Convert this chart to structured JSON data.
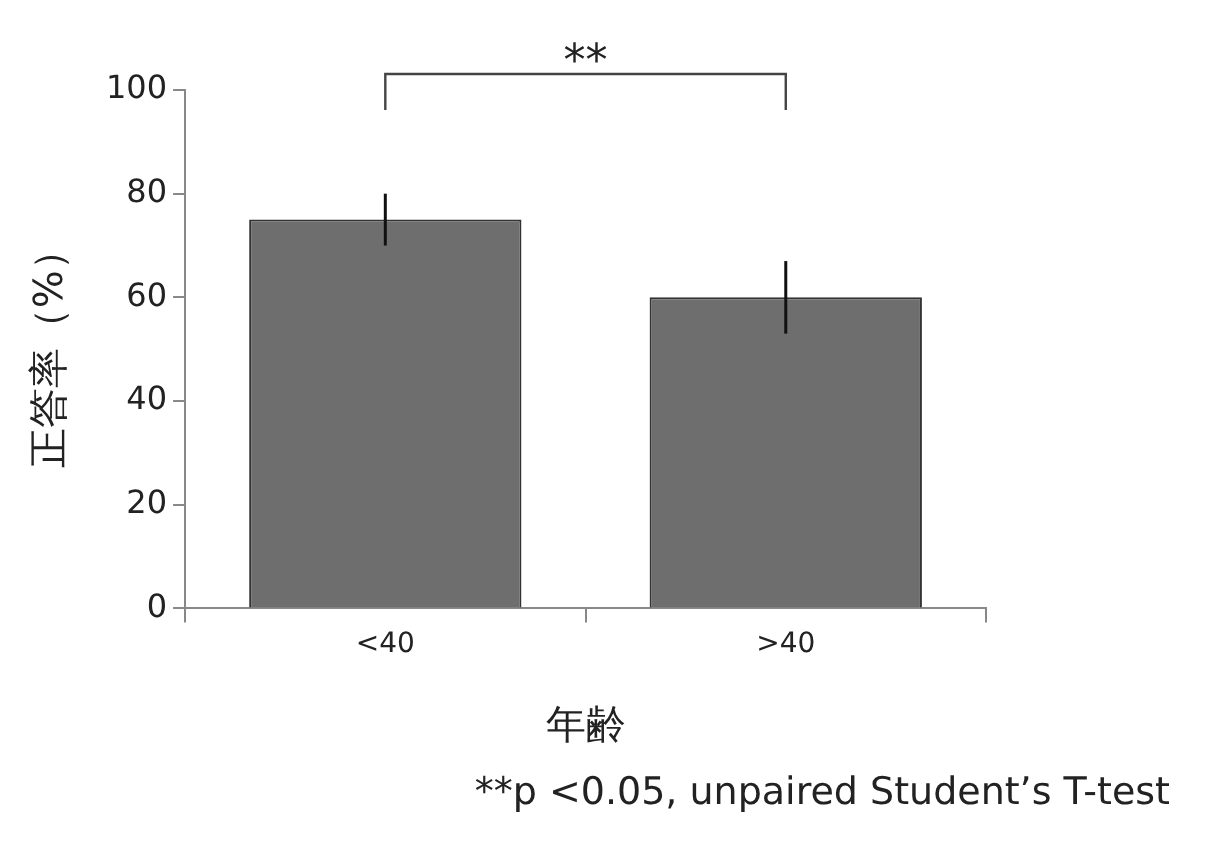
{
  "chart_data": {
    "type": "bar",
    "xlabel": "年齢",
    "ylabel": "正答率（%）",
    "categories": [
      "<40",
      ">40"
    ],
    "values": [
      75,
      60
    ],
    "errors": [
      5,
      7
    ],
    "color": "#6e6e6e",
    "ylim": [
      0,
      100
    ],
    "yticks": [
      0,
      20,
      40,
      60,
      80,
      100
    ],
    "grid": false,
    "legend": false,
    "annotations": [
      "**",
      "**p <0.05, unpaired Student’s T-test"
    ]
  }
}
